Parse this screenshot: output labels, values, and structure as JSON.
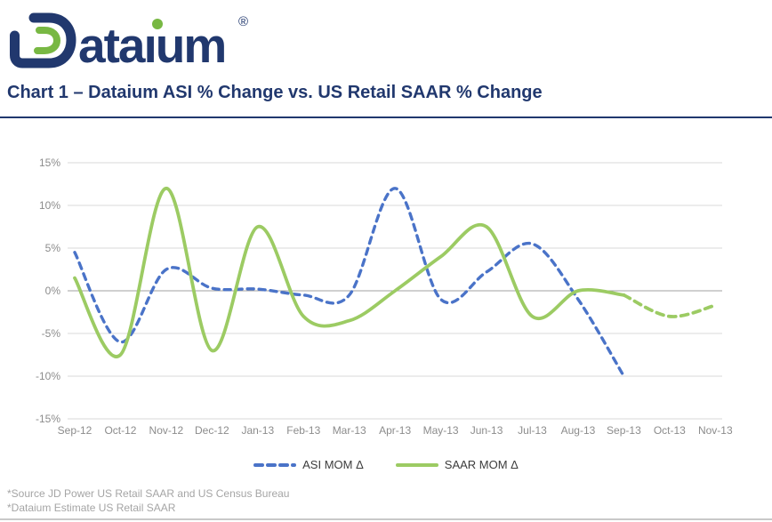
{
  "logo": {
    "brand": "Dataium",
    "wordmark_tail": "ataıum",
    "registered": "®",
    "navy": "#21386e",
    "green": "#78b843"
  },
  "title": "Chart 1 – Dataium ASI % Change vs. US Retail SAAR % Change",
  "legend": {
    "items": [
      {
        "label": "ASI MOM Δ",
        "color": "#4a73c8",
        "style": "dashed"
      },
      {
        "label": "SAAR MOM Δ",
        "color": "#9ccb63",
        "style": "solid"
      }
    ]
  },
  "footnotes": [
    "*Source JD Power US Retail SAAR and US Census Bureau",
    "*Dataium Estimate US Retail SAAR"
  ],
  "chart_data": {
    "type": "line",
    "title": "Chart 1 – Dataium ASI % Change vs. US Retail SAAR % Change",
    "categories": [
      "Sep-12",
      "Oct-12",
      "Nov-12",
      "Dec-12",
      "Jan-13",
      "Feb-13",
      "Mar-13",
      "Apr-13",
      "May-13",
      "Jun-13",
      "Jul-13",
      "Aug-13",
      "Sep-13",
      "Oct-13",
      "Nov-13"
    ],
    "unit": "%",
    "ylim": [
      -15,
      15
    ],
    "ytick_values": [
      15,
      10,
      5,
      0,
      -5,
      -10,
      -15
    ],
    "ytick_labels": [
      "15%",
      "10%",
      "5%",
      "0%",
      "-5%",
      "-10%",
      "-15%"
    ],
    "grid": true,
    "legend_position": "bottom",
    "series": [
      {
        "id": "asi-mom",
        "name": "ASI MOM Δ",
        "color": "#4a73c8",
        "dash": "7 6",
        "width": 3.4,
        "values": [
          4.5,
          -6,
          2.5,
          0.3,
          0.2,
          -0.5,
          -0.5,
          12,
          -1,
          2.2,
          5.5,
          -1,
          -10,
          null,
          null
        ]
      },
      {
        "id": "saar-mom",
        "name": "SAAR MOM Δ",
        "color": "#9ccb63",
        "dash": null,
        "width": 3.8,
        "values": [
          1.5,
          -7.5,
          12,
          -7,
          7.5,
          -3,
          -3.5,
          0,
          4,
          7.5,
          -3,
          0,
          -0.5,
          null,
          null
        ]
      },
      {
        "id": "saar-mom-estimate",
        "name": "SAAR MOM Δ (Dataium estimate)",
        "color": "#9ccb63",
        "dash": "8 6",
        "width": 3.8,
        "values": [
          null,
          null,
          null,
          null,
          null,
          null,
          null,
          null,
          null,
          null,
          null,
          null,
          -0.5,
          -3,
          -1.7
        ]
      }
    ],
    "colors": {
      "gridline": "#d9d9d9",
      "zero_line": "#a0a0a0",
      "axis_label": "#8c8c8c"
    }
  }
}
